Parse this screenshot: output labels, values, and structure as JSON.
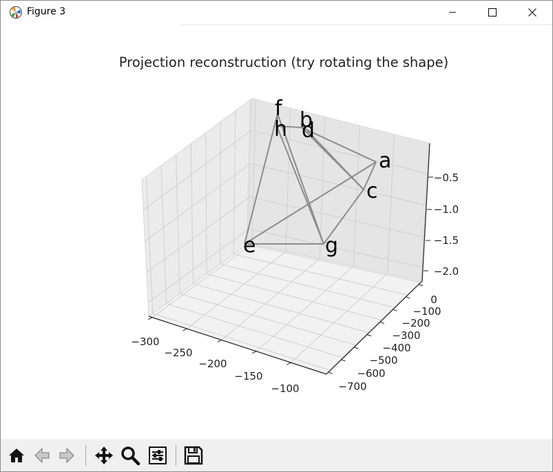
{
  "window": {
    "title": "Figure 3"
  },
  "toolbar": {
    "buttons": [
      "home-icon",
      "back-arrow-icon",
      "forward-arrow-icon",
      "pan-icon",
      "zoom-icon",
      "configure-icon",
      "save-icon"
    ]
  },
  "chart_data": {
    "type": "line3d",
    "title": "Projection reconstruction (try rotating the shape)",
    "xlabel": "",
    "ylabel": "",
    "zlabel": "",
    "x_ticks": [
      "−300",
      "−250",
      "−200",
      "−150",
      "−100"
    ],
    "y_ticks": [
      "0",
      "−100",
      "−200",
      "−300",
      "−400",
      "−500",
      "−600",
      "−700"
    ],
    "z_ticks": [
      "−2.0",
      "−1.5",
      "−1.0",
      "−0.5"
    ],
    "point_labels": [
      "a",
      "b",
      "c",
      "d",
      "e",
      "f",
      "g",
      "h"
    ],
    "grid": true,
    "line_color": "#8c8c8c"
  }
}
